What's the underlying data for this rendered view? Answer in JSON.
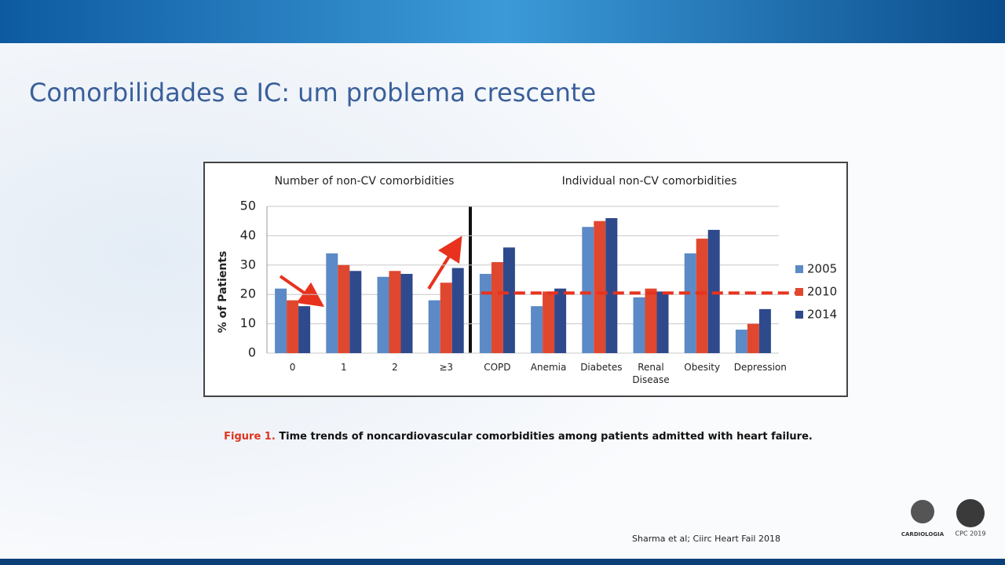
{
  "slide_title": "Comorbilidades e  IC: um problema crescente",
  "caption": {
    "label": "Figure 1.",
    "text": "Time trends of noncardiovascular comorbidities among patients admitted with heart failure."
  },
  "citation": "Sharma et al; Ciirc Heart Fail 2018",
  "logos": [
    "CARDIOLOGIA",
    "CPC 2019"
  ],
  "chart_data": {
    "type": "bar",
    "subtitles": [
      "Number of non-CV comorbidities",
      "Individual non-CV comorbidities"
    ],
    "ylabel": "% of Patients",
    "categories": [
      "0",
      "1",
      "2",
      "≥3",
      "COPD",
      "Anemia",
      "Diabetes",
      "Renal Disease",
      "Obesity",
      "Depression"
    ],
    "series": [
      {
        "name": "2005",
        "color": "#5b8ac6",
        "values": [
          22,
          34,
          26,
          18,
          27,
          16,
          43,
          19,
          34,
          8
        ]
      },
      {
        "name": "2010",
        "color": "#e0472f",
        "values": [
          18,
          30,
          28,
          24,
          31,
          21,
          45,
          22,
          39,
          10
        ]
      },
      {
        "name": "2014",
        "color": "#2e4a8c",
        "values": [
          16,
          28,
          27,
          29,
          36,
          22,
          46,
          21,
          42,
          15
        ]
      }
    ],
    "ylim": [
      0,
      50
    ],
    "yticks": [
      0,
      10,
      20,
      30,
      40,
      50
    ],
    "grid": true,
    "reference_line": {
      "value": 20.5,
      "color": "#e8321e"
    },
    "legend": "right"
  }
}
